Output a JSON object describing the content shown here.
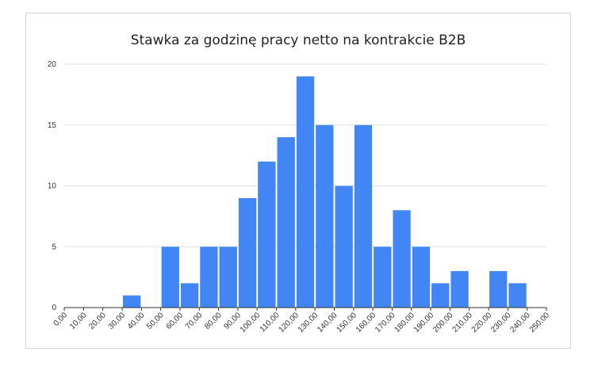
{
  "chart_data": {
    "type": "bar",
    "title": "Stawka za godzinę pracy netto na kontrakcie B2B",
    "xlabel": "",
    "ylabel": "",
    "bin_edges": [
      "0,00",
      "10,00",
      "20,00",
      "30,00",
      "40,00",
      "50,00",
      "60,00",
      "70,00",
      "80,00",
      "90,00",
      "100,00",
      "110,00",
      "120,00",
      "130,00",
      "140,00",
      "150,00",
      "160,00",
      "170,00",
      "180,00",
      "190,00",
      "200,00",
      "210,00",
      "220,00",
      "230,00",
      "240,00",
      "250,00"
    ],
    "values": [
      0,
      0,
      0,
      1,
      0,
      5,
      2,
      5,
      5,
      9,
      12,
      14,
      19,
      15,
      10,
      15,
      5,
      8,
      5,
      2,
      3,
      0,
      3,
      2,
      0
    ],
    "ylim": [
      0,
      20
    ],
    "yticks": [
      0,
      5,
      10,
      15,
      20
    ],
    "grid": true,
    "bar_color": "#4285f4"
  }
}
